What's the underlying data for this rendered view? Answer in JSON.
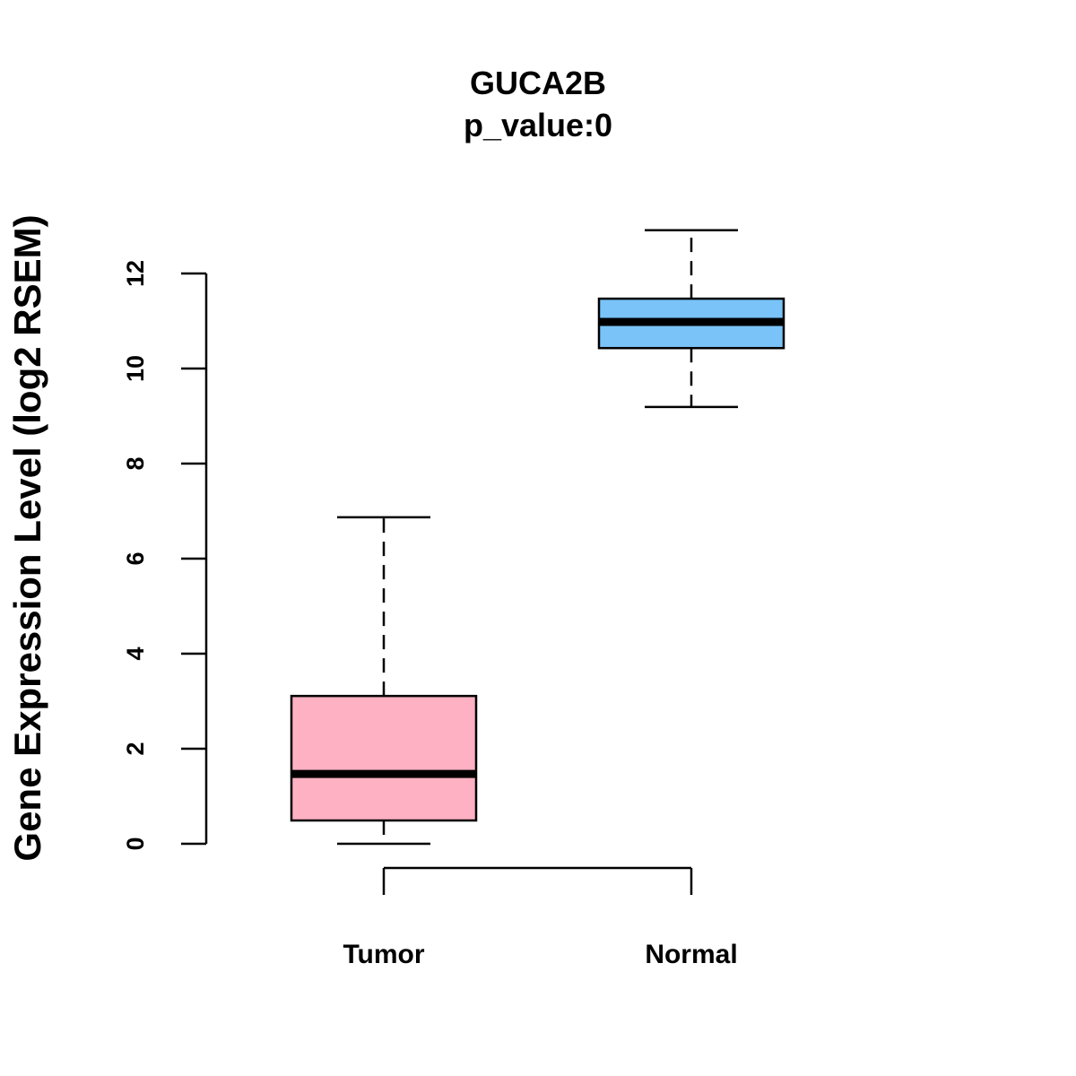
{
  "chart_data": {
    "type": "box",
    "title": "GUCA2B",
    "subtitle": "p_value:0",
    "xlabel": "",
    "ylabel": "Gene Expression Level (log2 RSEM)",
    "ylim": [
      0,
      12
    ],
    "yticks": [
      0,
      2,
      4,
      6,
      8,
      10,
      12
    ],
    "ytick_labels": [
      "0",
      "2",
      "4",
      "6",
      "8",
      "10",
      "12"
    ],
    "grid": false,
    "categories": [
      "Tumor",
      "Normal"
    ],
    "boxes": [
      {
        "name": "Tumor",
        "whisker_low": 0.0,
        "q1": 0.49,
        "median": 1.47,
        "q3": 3.11,
        "whisker_high": 6.87,
        "color": "#FDB1C2"
      },
      {
        "name": "Normal",
        "whisker_low": 9.19,
        "q1": 10.43,
        "median": 10.98,
        "q3": 11.47,
        "whisker_high": 12.91,
        "color": "#79C3F9"
      }
    ]
  }
}
